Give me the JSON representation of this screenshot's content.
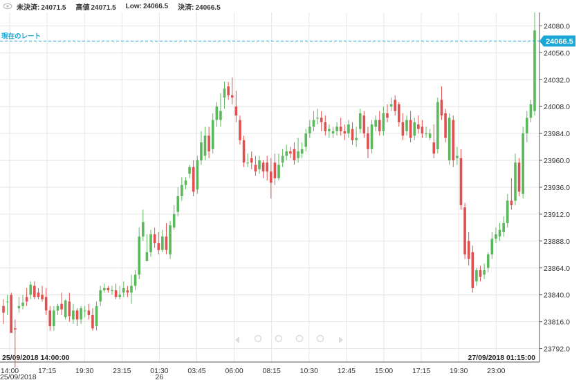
{
  "header": {
    "items": [
      {
        "label": "未決済:",
        "value": "24071.5"
      },
      {
        "label": "高値",
        "value": "24071.5"
      },
      {
        "label": "Low:",
        "value": "24066.5"
      },
      {
        "label": "決済:",
        "value": "24066.5"
      }
    ]
  },
  "current_rate": {
    "label": "現在のレート",
    "value": "24066.5"
  },
  "colors": {
    "up": "#5cb85c",
    "down": "#e05050",
    "rate": "#1aa7d6",
    "grid": "#e6e6e6"
  },
  "chart_data": {
    "type": "candlestick",
    "y_range": [
      23780,
      24092
    ],
    "y_ticks": [
      23792,
      23816,
      23840,
      23864,
      23888,
      23912,
      23936,
      23960,
      23984,
      24008,
      24032,
      24056,
      24080
    ],
    "y_tick_labels": [
      "23792.0",
      "23816.0",
      "23840.0",
      "23864.0",
      "23888.0",
      "23912.0",
      "23936.0",
      "23960.0",
      "23984.0",
      "24008.0",
      "24032.0",
      "24056.0",
      "24080.0"
    ],
    "x_tick_labels": [
      "14:00",
      "17:15",
      "19:30",
      "23:15",
      "01:30",
      "03:45",
      "06:00",
      "08:15",
      "10:30",
      "12:45",
      "15:00",
      "17:15",
      "19:30",
      "23:00"
    ],
    "x_sub_labels": [
      {
        "at": 0,
        "text": "25/09/2018"
      },
      {
        "at": 4,
        "text": "26"
      }
    ],
    "range_start": "25/09/2018 14:00:00",
    "range_end": "27/09/2018 01:15:00",
    "current_rate": 24066.5,
    "candles": [
      [
        23830,
        23836,
        23824,
        23814
      ],
      [
        23834,
        23840,
        23834,
        23822
      ],
      [
        23840,
        23842,
        23806,
        23810
      ],
      [
        23810,
        23818,
        23809,
        23775
      ],
      [
        23828,
        23838,
        23830,
        23824
      ],
      [
        23830,
        23840,
        23833,
        23827
      ],
      [
        23838,
        23846,
        23834,
        23830
      ],
      [
        23840,
        23852,
        23849,
        23836
      ],
      [
        23848,
        23852,
        23838,
        23836
      ],
      [
        23842,
        23846,
        23838,
        23836
      ],
      [
        23840,
        23848,
        23836,
        23834
      ],
      [
        23838,
        23846,
        23826,
        23822
      ],
      [
        23826,
        23830,
        23812,
        23808
      ],
      [
        23812,
        23830,
        23826,
        23808
      ],
      [
        23826,
        23832,
        23830,
        23822
      ],
      [
        23832,
        23842,
        23827,
        23822
      ],
      [
        23820,
        23836,
        23835,
        23818
      ],
      [
        23834,
        23842,
        23821,
        23816
      ],
      [
        23818,
        23832,
        23826,
        23814
      ],
      [
        23826,
        23828,
        23818,
        23812
      ],
      [
        23818,
        23830,
        23828,
        23814
      ],
      [
        23826,
        23830,
        23826,
        23820
      ],
      [
        23826,
        23832,
        23822,
        23818
      ],
      [
        23822,
        23828,
        23810,
        23808
      ],
      [
        23812,
        23834,
        23830,
        23808
      ],
      [
        23834,
        23848,
        23844,
        23830
      ],
      [
        23844,
        23850,
        23846,
        23842
      ],
      [
        23846,
        23848,
        23844,
        23842
      ],
      [
        23844,
        23848,
        23844,
        23840
      ],
      [
        23844,
        23850,
        23838,
        23836
      ],
      [
        23838,
        23848,
        23840,
        23836
      ],
      [
        23842,
        23852,
        23846,
        23838
      ],
      [
        23844,
        23848,
        23842,
        23838
      ],
      [
        23842,
        23858,
        23848,
        23832
      ],
      [
        23848,
        23862,
        23858,
        23844
      ],
      [
        23858,
        23900,
        23892,
        23854
      ],
      [
        23892,
        23916,
        23905,
        23888
      ],
      [
        23870,
        23894,
        23878,
        23870
      ],
      [
        23878,
        23898,
        23894,
        23874
      ],
      [
        23894,
        23900,
        23886,
        23882
      ],
      [
        23886,
        23896,
        23880,
        23876
      ],
      [
        23880,
        23898,
        23892,
        23878
      ],
      [
        23892,
        23904,
        23880,
        23876
      ],
      [
        23876,
        23906,
        23902,
        23872
      ],
      [
        23900,
        23920,
        23912,
        23898
      ],
      [
        23914,
        23936,
        23928,
        23910
      ],
      [
        23928,
        23945,
        23938,
        23924
      ],
      [
        23938,
        23945,
        23942,
        23934
      ],
      [
        23948,
        23956,
        23954,
        23944
      ],
      [
        23954,
        23960,
        23932,
        23928
      ],
      [
        23934,
        23964,
        23960,
        23930
      ],
      [
        23960,
        23986,
        23976,
        23956
      ],
      [
        23964,
        23990,
        23982,
        23960
      ],
      [
        23982,
        23990,
        23968,
        23962
      ],
      [
        23970,
        24002,
        23996,
        23966
      ],
      [
        23996,
        24012,
        24008,
        23990
      ],
      [
        23996,
        24020,
        24004,
        23990
      ],
      [
        24016,
        24030,
        24024,
        24006
      ],
      [
        24026,
        24030,
        24018,
        24014
      ],
      [
        24018,
        24034,
        24016,
        24010
      ],
      [
        24008,
        24022,
        24000,
        23994
      ],
      [
        23996,
        24000,
        23978,
        23974
      ],
      [
        23978,
        23982,
        23958,
        23954
      ],
      [
        23958,
        23966,
        23958,
        23954
      ],
      [
        23962,
        23968,
        23958,
        23952
      ],
      [
        23956,
        23964,
        23950,
        23946
      ],
      [
        23952,
        23964,
        23960,
        23948
      ],
      [
        23958,
        23960,
        23950,
        23944
      ],
      [
        23958,
        23964,
        23950,
        23942
      ],
      [
        23950,
        23962,
        23940,
        23926
      ],
      [
        23958,
        23966,
        23944,
        23938
      ],
      [
        23944,
        23966,
        23956,
        23942
      ],
      [
        23958,
        23970,
        23964,
        23954
      ],
      [
        23964,
        23974,
        23968,
        23960
      ],
      [
        23968,
        23972,
        23966,
        23962
      ],
      [
        23970,
        23976,
        23960,
        23956
      ],
      [
        23962,
        23980,
        23968,
        23958
      ],
      [
        23966,
        23976,
        23970,
        23962
      ],
      [
        23972,
        23988,
        23984,
        23968
      ],
      [
        23984,
        23996,
        23990,
        23980
      ],
      [
        23990,
        24004,
        23996,
        23986
      ],
      [
        23998,
        24006,
        23998,
        23992
      ],
      [
        23998,
        24004,
        23994,
        23986
      ],
      [
        23994,
        24000,
        23986,
        23982
      ],
      [
        23986,
        23992,
        23988,
        23980
      ],
      [
        23984,
        23990,
        23986,
        23980
      ],
      [
        23986,
        23994,
        23990,
        23982
      ],
      [
        23990,
        23998,
        23986,
        23982
      ],
      [
        23986,
        23992,
        23984,
        23978
      ],
      [
        23984,
        23996,
        23992,
        23980
      ],
      [
        23988,
        23994,
        23978,
        23974
      ],
      [
        23978,
        23990,
        23980,
        23972
      ],
      [
        23988,
        24006,
        24002,
        23984
      ],
      [
        24000,
        24004,
        23984,
        23980
      ],
      [
        23984,
        23990,
        23970,
        23962
      ],
      [
        23970,
        23996,
        23992,
        23966
      ],
      [
        23990,
        24000,
        23996,
        23986
      ],
      [
        23996,
        24004,
        23986,
        23982
      ],
      [
        23986,
        24008,
        24002,
        23982
      ],
      [
        24002,
        24010,
        23998,
        23994
      ],
      [
        24008,
        24016,
        24010,
        24004
      ],
      [
        24014,
        24018,
        24004,
        24000
      ],
      [
        24010,
        24012,
        23994,
        23990
      ],
      [
        23994,
        24002,
        23982,
        23978
      ],
      [
        23986,
        24000,
        23996,
        23982
      ],
      [
        23996,
        24004,
        23980,
        23976
      ],
      [
        23982,
        23998,
        23994,
        23978
      ],
      [
        23992,
        24000,
        23988,
        23984
      ],
      [
        23990,
        23996,
        23984,
        23980
      ],
      [
        23984,
        23990,
        23984,
        23980
      ],
      [
        23980,
        23988,
        23984,
        23978
      ],
      [
        23976,
        23992,
        23966,
        23962
      ],
      [
        23970,
        24016,
        24012,
        23966
      ],
      [
        24014,
        24026,
        24000,
        23996
      ],
      [
        24002,
        24006,
        23980,
        23976
      ],
      [
        23960,
        24002,
        23998,
        23956
      ],
      [
        23996,
        24000,
        23960,
        23954
      ],
      [
        23962,
        23972,
        23964,
        23956
      ],
      [
        23962,
        23970,
        23920,
        23916
      ],
      [
        23918,
        23922,
        23876,
        23872
      ],
      [
        23888,
        23896,
        23872,
        23866
      ],
      [
        23878,
        23884,
        23846,
        23842
      ],
      [
        23852,
        23864,
        23862,
        23848
      ],
      [
        23862,
        23866,
        23856,
        23852
      ],
      [
        23858,
        23868,
        23862,
        23854
      ],
      [
        23864,
        23878,
        23876,
        23860
      ],
      [
        23876,
        23896,
        23890,
        23872
      ],
      [
        23890,
        23900,
        23894,
        23886
      ],
      [
        23892,
        23904,
        23898,
        23888
      ],
      [
        23896,
        23910,
        23904,
        23892
      ],
      [
        23904,
        23930,
        23924,
        23900
      ],
      [
        23924,
        23944,
        23920,
        23916
      ],
      [
        23924,
        23966,
        23958,
        23920
      ],
      [
        23958,
        23962,
        23932,
        23928
      ],
      [
        23930,
        23990,
        23984,
        23926
      ],
      [
        23984,
        24004,
        23998,
        23976
      ],
      [
        23998,
        24014,
        24010,
        23994
      ],
      [
        24004,
        24092,
        24076,
        24000
      ]
    ]
  }
}
